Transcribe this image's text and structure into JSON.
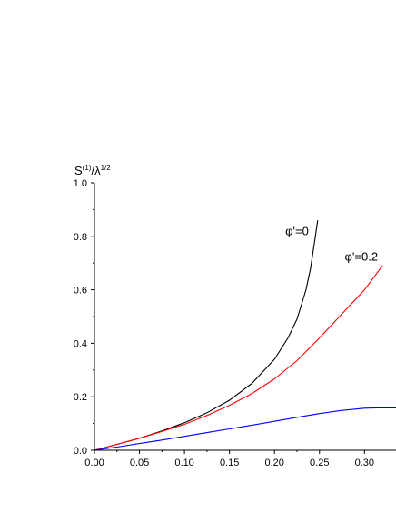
{
  "chart_data": {
    "type": "line",
    "ylabel": {
      "base": "S",
      "sup1": "(1)",
      "mid": "/λ",
      "sup2": "1/2"
    },
    "xlabel": "",
    "xlim": [
      0.0,
      0.335
    ],
    "ylim": [
      0.0,
      1.0
    ],
    "xticks": [
      "0.00",
      "0.05",
      "0.10",
      "0.15",
      "0.20",
      "0.25",
      "0.30"
    ],
    "yticks": [
      "0.0",
      "0.2",
      "0.4",
      "0.6",
      "0.8",
      "1.0"
    ],
    "grid": false,
    "series": [
      {
        "name": "φ'=0",
        "color": "#000000",
        "x": [
          0.0,
          0.025,
          0.05,
          0.075,
          0.1,
          0.125,
          0.15,
          0.175,
          0.2,
          0.215,
          0.225,
          0.235,
          0.24,
          0.245,
          0.248
        ],
        "y": [
          0.0,
          0.022,
          0.045,
          0.072,
          0.103,
          0.14,
          0.187,
          0.25,
          0.34,
          0.42,
          0.49,
          0.6,
          0.68,
          0.79,
          0.86
        ]
      },
      {
        "name": "φ'=0.2",
        "color": "#ff0000",
        "x": [
          0.0,
          0.025,
          0.05,
          0.075,
          0.1,
          0.125,
          0.15,
          0.175,
          0.2,
          0.225,
          0.25,
          0.275,
          0.3,
          0.32
        ],
        "y": [
          0.0,
          0.022,
          0.045,
          0.07,
          0.097,
          0.13,
          0.168,
          0.212,
          0.267,
          0.335,
          0.42,
          0.51,
          0.6,
          0.69
        ]
      },
      {
        "name": "",
        "color": "#0000ff",
        "x": [
          0.0,
          0.025,
          0.05,
          0.075,
          0.1,
          0.125,
          0.15,
          0.175,
          0.2,
          0.225,
          0.25,
          0.275,
          0.3,
          0.32,
          0.335
        ],
        "y": [
          0.0,
          0.012,
          0.025,
          0.038,
          0.052,
          0.066,
          0.08,
          0.094,
          0.108,
          0.123,
          0.137,
          0.149,
          0.157,
          0.159,
          0.158
        ]
      }
    ],
    "annotations": [
      {
        "text": "φ'=0",
        "x": 0.212,
        "y": 0.805,
        "series": 0
      },
      {
        "text": "φ'=0.2",
        "x": 0.278,
        "y": 0.71,
        "series": 1
      }
    ]
  }
}
